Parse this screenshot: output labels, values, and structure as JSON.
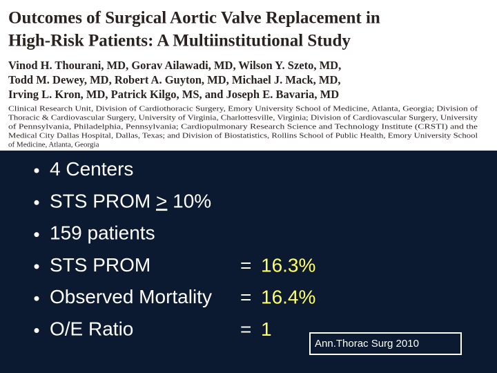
{
  "header": {
    "title": [
      "Outcomes of Surgical Aortic Valve Replacement in",
      "High-Risk Patients: A Multiinstitutional Study"
    ],
    "authors": [
      "Vinod H. Thourani, MD, Gorav Ailawadi, MD, Wilson Y. Szeto, MD,",
      "Todd M. Dewey, MD, Robert A. Guyton, MD, Michael J. Mack, MD,",
      "Irving L. Kron, MD, Patrick Kilgo, MS, and Joseph E. Bavaria, MD"
    ],
    "affiliation": [
      "Clinical Research Unit, Division of Cardiothoracic Surgery, Emory University School of Medicine, Atlanta, Georgia; Division of",
      "Thoracic & Cardiovascular Surgery, University of Virginia, Charlottesville, Virginia; Division of Cardiovascular Surgery, University",
      "of Pennsylvania, Philadelphia, Pennsylvania; Cardiopulmonary Research Science and Technology Institute (CRSTI) and the",
      "Medical City Dallas Hospital, Dallas, Texas; and Division of Biostatistics, Rollins School of Public Health, Emory University School",
      "of Medicine, Atlanta, Georgia"
    ]
  },
  "bullets": [
    {
      "text": "4 Centers"
    },
    {
      "text": "STS PROM ",
      "underlined": ">",
      "suffix": " 10%"
    },
    {
      "text": "159 patients"
    },
    {
      "text": "STS PROM",
      "equals": "=",
      "value": "16.3%"
    },
    {
      "text": "Observed Mortality",
      "equals": "=",
      "value": "16.4%"
    },
    {
      "text": "O/E Ratio",
      "equals": "=",
      "value": "1"
    }
  ],
  "citation": "Ann.Thorac Surg 2010"
}
